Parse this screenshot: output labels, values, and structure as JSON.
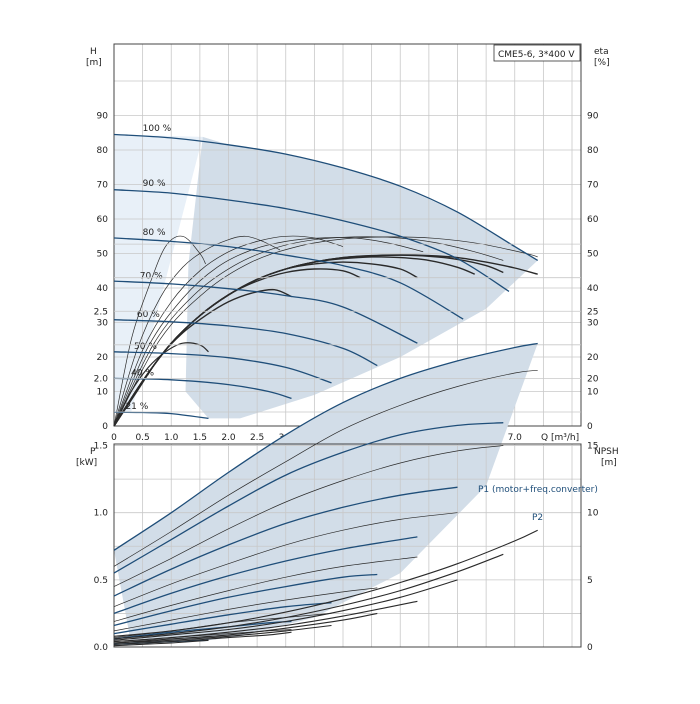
{
  "chart_data": [
    {
      "type": "line",
      "panel": "head",
      "title": "CME5-6, 3*400 V",
      "ylabel": "H",
      "yunit": "[m]",
      "y2label": "eta",
      "y2unit": "[%]",
      "xlabel": "Q [m³/h]",
      "xlim": [
        0,
        8.2
      ],
      "ylim": [
        0,
        100
      ],
      "y2lim": [
        0,
        100
      ],
      "xticks": [
        "0",
        "0.5",
        "1.0",
        "1.5",
        "2.0",
        "2.5",
        "3.0",
        "3.5",
        "4.0",
        "4.5",
        "5.0",
        "5.5",
        "6.0",
        "6.5",
        "7.0"
      ],
      "yticks": [
        "0",
        "10",
        "20",
        "30",
        "40",
        "50",
        "60",
        "70",
        "80",
        "90"
      ],
      "grid": true,
      "speed_curves": [
        {
          "name": "100 %",
          "x": [
            0,
            1.0,
            2.0,
            3.0,
            4.0,
            5.0,
            6.0,
            7.0,
            7.4
          ],
          "y": [
            84.5,
            83.5,
            81.5,
            78.8,
            74.8,
            69.5,
            62.0,
            52.0,
            48.0
          ]
        },
        {
          "name": "90 %",
          "x": [
            0,
            1.0,
            2.0,
            3.0,
            4.0,
            5.0,
            6.0,
            6.9
          ],
          "y": [
            68.5,
            67.5,
            65.5,
            63.0,
            59.5,
            55.0,
            48.5,
            39.0
          ]
        },
        {
          "name": "80 %",
          "x": [
            0,
            1.0,
            2.0,
            3.0,
            4.0,
            5.0,
            6.1
          ],
          "y": [
            54.5,
            53.5,
            52.0,
            49.5,
            46.5,
            41.5,
            31.0
          ]
        },
        {
          "name": "70 %",
          "x": [
            0,
            1.0,
            2.0,
            3.0,
            4.0,
            5.3
          ],
          "y": [
            42.0,
            41.2,
            39.8,
            37.8,
            34.5,
            24.0
          ]
        },
        {
          "name": "60 %",
          "x": [
            0,
            1.0,
            2.0,
            3.0,
            4.0,
            4.6
          ],
          "y": [
            30.8,
            30.2,
            29.0,
            26.8,
            22.5,
            17.5
          ]
        },
        {
          "name": "50 %",
          "x": [
            0,
            1.0,
            2.0,
            3.0,
            3.8
          ],
          "y": [
            21.5,
            21.0,
            19.8,
            17.0,
            12.5
          ]
        },
        {
          "name": "40 %",
          "x": [
            0,
            1.0,
            2.0,
            2.7,
            3.1
          ],
          "y": [
            13.8,
            13.4,
            12.0,
            10.0,
            8.0
          ]
        },
        {
          "name": "21 %",
          "x": [
            0,
            0.5,
            1.0,
            1.65
          ],
          "y": [
            4.0,
            3.9,
            3.6,
            2.2
          ]
        }
      ],
      "eta_curves": [
        {
          "x": [
            0,
            0.4,
            0.8,
            1.2,
            1.6,
            2.0,
            2.4,
            2.8,
            3.1
          ],
          "y": [
            0,
            10,
            20,
            27,
            32,
            36,
            38.5,
            39.5,
            37.5
          ]
        },
        {
          "x": [
            0,
            0.5,
            1.0,
            1.5,
            2.0,
            2.5,
            3.0,
            3.5,
            4.0,
            4.3
          ],
          "y": [
            0,
            13,
            24,
            32,
            38,
            42,
            44.5,
            45.5,
            45,
            43
          ]
        },
        {
          "x": [
            0,
            0.5,
            1.0,
            1.5,
            2.0,
            2.5,
            3.0,
            3.5,
            4.0,
            4.5,
            5.0,
            5.3
          ],
          "y": [
            0,
            13,
            24,
            32,
            38,
            42.5,
            45.5,
            47,
            47.5,
            47,
            45.5,
            43
          ]
        },
        {
          "x": [
            0,
            0.5,
            1.0,
            1.5,
            2.0,
            2.5,
            3.0,
            3.5,
            4.0,
            4.5,
            5.0,
            5.5,
            6.0,
            6.3
          ],
          "y": [
            0,
            13,
            24,
            32,
            38,
            42.5,
            45.5,
            47.5,
            48.5,
            49,
            48.8,
            48,
            46,
            44
          ]
        },
        {
          "x": [
            0,
            0.5,
            1.0,
            1.5,
            2.0,
            2.5,
            3.0,
            3.5,
            4.0,
            4.5,
            5.0,
            5.5,
            6.0,
            6.5,
            6.8
          ],
          "y": [
            0,
            13,
            24,
            32,
            38,
            42.5,
            45.5,
            47.5,
            48.8,
            49.3,
            49.5,
            49.2,
            48.3,
            46.5,
            44.5
          ]
        },
        {
          "x": [
            0,
            0.5,
            1.0,
            1.5,
            2.0,
            2.5,
            3.0,
            3.5,
            4.0,
            4.5,
            5.0,
            5.5,
            6.0,
            6.5,
            7.0,
            7.4
          ],
          "y": [
            0,
            13,
            24,
            32,
            38,
            42.5,
            45.5,
            47.5,
            48.8,
            49.4,
            49.6,
            49.4,
            48.8,
            47.5,
            45.8,
            44
          ]
        }
      ],
      "thin_eta_curves": [
        {
          "x": [
            0,
            0.3,
            0.6,
            0.9,
            1.2,
            1.5,
            1.6
          ],
          "y": [
            0,
            25,
            40,
            52,
            55,
            50,
            47
          ]
        },
        {
          "x": [
            0,
            0.4,
            0.8,
            1.2,
            1.6,
            2.0,
            2.3,
            2.6,
            2.9
          ],
          "y": [
            0,
            22,
            37,
            46,
            51,
            54,
            55,
            53.5,
            51
          ]
        },
        {
          "x": [
            0,
            0.5,
            1.0,
            1.5,
            2.0,
            2.5,
            3.0,
            3.5,
            4.0
          ],
          "y": [
            0,
            22,
            36,
            45,
            50.5,
            53.5,
            55,
            54.5,
            52
          ]
        },
        {
          "x": [
            0,
            0.6,
            1.2,
            1.8,
            2.4,
            3.0,
            3.6,
            4.2,
            4.8,
            5.4
          ],
          "y": [
            0,
            23,
            37,
            46,
            51,
            53.5,
            54.5,
            54.5,
            53,
            50.5
          ]
        },
        {
          "x": [
            0,
            0.7,
            1.4,
            2.1,
            2.8,
            3.5,
            4.2,
            4.9,
            5.6,
            6.3,
            6.8
          ],
          "y": [
            0,
            24,
            38,
            46.5,
            51.5,
            54,
            54.8,
            54.6,
            53.2,
            50.5,
            48
          ]
        },
        {
          "x": [
            0,
            0.8,
            1.6,
            2.4,
            3.2,
            4.0,
            4.8,
            5.6,
            6.4,
            7.2,
            7.4
          ],
          "y": [
            0,
            25,
            39,
            47.5,
            52,
            54.2,
            54.8,
            54.4,
            52.8,
            50,
            49
          ]
        }
      ],
      "small_eta_curve": {
        "x": [
          0,
          0.3,
          0.6,
          0.9,
          1.2,
          1.5,
          1.65
        ],
        "y": [
          0,
          10,
          17,
          21.5,
          24,
          23.5,
          21.5
        ]
      }
    },
    {
      "type": "line",
      "panel": "power",
      "ylabel": "P",
      "yunit": "[kW]",
      "y2label": "NPSH",
      "y2unit": "[m]",
      "xlim": [
        0,
        8.2
      ],
      "ylim": [
        0,
        3.0
      ],
      "y2lim": [
        0,
        30
      ],
      "yticks": [
        "0.0",
        "0.5",
        "1.0",
        "1.5",
        "2.0",
        "2.5"
      ],
      "y2ticks": [
        "0",
        "5",
        "10",
        "15",
        "20",
        "25"
      ],
      "grid": true,
      "series_labels": [
        "P1 (motor+freq.converter)",
        "P2"
      ],
      "p1_curves": [
        {
          "name": "P1 (motor+freq.converter)",
          "x": [
            0,
            1.0,
            2.0,
            3.0,
            4.0,
            5.0,
            6.0,
            7.0,
            7.4
          ],
          "y": [
            0.72,
            1.0,
            1.3,
            1.58,
            1.82,
            2.0,
            2.13,
            2.23,
            2.26
          ]
        },
        {
          "x": [
            0,
            1.0,
            2.0,
            3.0,
            4.0,
            5.0,
            6.0,
            6.8
          ],
          "y": [
            0.55,
            0.8,
            1.05,
            1.28,
            1.45,
            1.58,
            1.65,
            1.67
          ]
        },
        {
          "x": [
            0,
            1.0,
            2.0,
            3.0,
            4.0,
            5.0,
            6.0
          ],
          "y": [
            0.38,
            0.58,
            0.76,
            0.92,
            1.04,
            1.13,
            1.19
          ]
        },
        {
          "x": [
            0,
            1.0,
            2.0,
            3.0,
            4.0,
            5.3
          ],
          "y": [
            0.25,
            0.4,
            0.53,
            0.64,
            0.73,
            0.82
          ]
        },
        {
          "x": [
            0,
            1.0,
            2.0,
            3.0,
            4.0,
            4.6
          ],
          "y": [
            0.16,
            0.27,
            0.37,
            0.45,
            0.52,
            0.54
          ]
        },
        {
          "x": [
            0,
            1.0,
            2.0,
            3.0,
            3.8
          ],
          "y": [
            0.1,
            0.17,
            0.24,
            0.3,
            0.33
          ]
        },
        {
          "x": [
            0,
            1.0,
            2.0,
            2.7,
            3.1
          ],
          "y": [
            0.06,
            0.11,
            0.15,
            0.18,
            0.19
          ]
        },
        {
          "x": [
            0,
            0.5,
            1.0,
            1.65
          ],
          "y": [
            0.02,
            0.03,
            0.04,
            0.05
          ]
        }
      ],
      "p2_curves": [
        {
          "name": "P2",
          "x": [
            0,
            1.0,
            2.0,
            3.0,
            4.0,
            5.0,
            6.0,
            7.0,
            7.4
          ],
          "y": [
            0.6,
            0.86,
            1.13,
            1.38,
            1.62,
            1.8,
            1.94,
            2.04,
            2.06
          ]
        },
        {
          "x": [
            0,
            1.0,
            2.0,
            3.0,
            4.0,
            5.0,
            6.0,
            6.8
          ],
          "y": [
            0.45,
            0.66,
            0.88,
            1.08,
            1.24,
            1.37,
            1.46,
            1.5
          ]
        },
        {
          "x": [
            0,
            1.0,
            2.0,
            3.0,
            4.0,
            5.0,
            6.0
          ],
          "y": [
            0.3,
            0.47,
            0.62,
            0.76,
            0.87,
            0.95,
            1.0
          ]
        },
        {
          "x": [
            0,
            1.0,
            2.0,
            3.0,
            4.0,
            5.3
          ],
          "y": [
            0.19,
            0.31,
            0.42,
            0.52,
            0.6,
            0.67
          ]
        },
        {
          "x": [
            0,
            1.0,
            2.0,
            3.0,
            4.0,
            4.6
          ],
          "y": [
            0.12,
            0.2,
            0.28,
            0.35,
            0.41,
            0.44
          ]
        },
        {
          "x": [
            0,
            1.0,
            2.0,
            3.0,
            3.8
          ],
          "y": [
            0.07,
            0.12,
            0.18,
            0.22,
            0.25
          ]
        },
        {
          "x": [
            0,
            1.0,
            2.0,
            2.7,
            3.1
          ],
          "y": [
            0.04,
            0.07,
            0.1,
            0.12,
            0.13
          ]
        }
      ],
      "npsh_curves": [
        {
          "x": [
            0,
            1.0,
            2.0,
            3.0,
            4.0,
            5.0,
            6.0,
            7.0,
            7.4
          ],
          "y": [
            0.8,
            1.2,
            1.8,
            2.6,
            3.6,
            4.8,
            6.2,
            7.9,
            8.7
          ]
        },
        {
          "x": [
            0,
            1.0,
            2.0,
            3.0,
            4.0,
            5.0,
            6.0,
            6.8
          ],
          "y": [
            0.6,
            1.0,
            1.5,
            2.2,
            3.1,
            4.2,
            5.6,
            6.9
          ]
        },
        {
          "x": [
            0,
            1.0,
            2.0,
            3.0,
            4.0,
            5.0,
            6.0
          ],
          "y": [
            0.5,
            0.9,
            1.3,
            1.9,
            2.7,
            3.7,
            5.0
          ]
        },
        {
          "x": [
            0,
            1.0,
            2.0,
            3.0,
            4.0,
            5.3
          ],
          "y": [
            0.4,
            0.7,
            1.1,
            1.6,
            2.3,
            3.4
          ]
        },
        {
          "x": [
            0,
            1.0,
            2.0,
            3.0,
            4.0,
            4.6
          ],
          "y": [
            0.3,
            0.6,
            0.9,
            1.4,
            2.0,
            2.5
          ]
        },
        {
          "x": [
            0,
            1.0,
            2.0,
            3.0,
            3.8
          ],
          "y": [
            0.3,
            0.5,
            0.8,
            1.2,
            1.6
          ]
        },
        {
          "x": [
            0,
            1.0,
            2.0,
            2.7,
            3.1
          ],
          "y": [
            0.2,
            0.4,
            0.7,
            0.9,
            1.1
          ]
        },
        {
          "x": [
            0,
            0.5,
            1.0,
            1.65
          ],
          "y": [
            0.1,
            0.2,
            0.3,
            0.5
          ]
        }
      ]
    }
  ],
  "colors": {
    "main_curve": "#1f4e79",
    "thin_curve": "#2a2a2a",
    "region_fill": "#d2dde8",
    "region_fill_light": "#e8f0f8",
    "grid": "#c8c8c8"
  }
}
